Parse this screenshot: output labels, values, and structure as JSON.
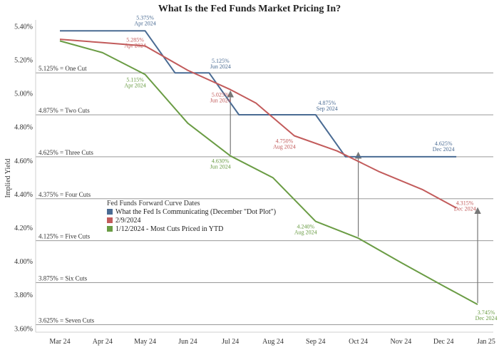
{
  "chart_data": {
    "type": "line",
    "title": "What Is the Fed Funds Market Pricing In?",
    "ylabel": "Implied Yield",
    "xlabel": "",
    "categories": [
      "Mar 24",
      "Apr 24",
      "May 24",
      "Jun 24",
      "Jul 24",
      "Aug 24",
      "Sep 24",
      "Oct 24",
      "Nov 24",
      "Dec 24",
      "Jan 25"
    ],
    "ylim": [
      3.58,
      5.44
    ],
    "yticks": [
      "3.60%",
      "3.80%",
      "4.00%",
      "4.20%",
      "4.40%",
      "4.60%",
      "4.80%",
      "5.00%",
      "5.20%",
      "5.40%"
    ],
    "legend": {
      "title": "Fed Funds Forward Curve Dates",
      "placement": "center-left"
    },
    "series": [
      {
        "name": "What the Fed Is Communicating (December \"Dot Plot\")",
        "color": "#4a6b93",
        "points": [
          [
            0,
            5.375
          ],
          [
            1,
            5.375
          ],
          [
            2,
            5.375
          ],
          [
            2.7,
            5.125
          ],
          [
            3.5,
            5.125
          ],
          [
            4.2,
            4.875
          ],
          [
            5,
            4.875
          ],
          [
            6,
            4.875
          ],
          [
            6.7,
            4.625
          ],
          [
            8,
            4.625
          ],
          [
            9,
            4.625
          ],
          [
            9.3,
            4.625
          ]
        ]
      },
      {
        "name": "2/9/2024",
        "color": "#c25b5b",
        "points": [
          [
            0,
            5.325
          ],
          [
            1,
            5.305
          ],
          [
            2,
            5.285
          ],
          [
            3,
            5.14
          ],
          [
            4,
            5.025
          ],
          [
            4.6,
            4.945
          ],
          [
            5.5,
            4.75
          ],
          [
            6.5,
            4.66
          ],
          [
            7.5,
            4.535
          ],
          [
            8.5,
            4.43
          ],
          [
            9.3,
            4.32
          ]
        ]
      },
      {
        "name": "1/12/2024 - Most Cuts Priced in YTD",
        "color": "#6a9c44",
        "points": [
          [
            0,
            5.315
          ],
          [
            1,
            5.245
          ],
          [
            2,
            5.115
          ],
          [
            3,
            4.825
          ],
          [
            4,
            4.63
          ],
          [
            5,
            4.5
          ],
          [
            6,
            4.24
          ],
          [
            7,
            4.14
          ],
          [
            8,
            3.995
          ],
          [
            9,
            3.855
          ],
          [
            9.8,
            3.745
          ]
        ]
      }
    ],
    "reference_lines": [
      {
        "value": 5.125,
        "label": "5.125% = One Cut"
      },
      {
        "value": 4.875,
        "label": "4.875% = Two Cuts"
      },
      {
        "value": 4.625,
        "label": "4.625% = Three Cuts"
      },
      {
        "value": 4.375,
        "label": "4.375% = Four Cuts"
      },
      {
        "value": 4.125,
        "label": "4.125% = Five Cuts"
      },
      {
        "value": 3.875,
        "label": "3.875% = Six Cuts"
      },
      {
        "value": 3.625,
        "label": "3.625% = Seven Cuts"
      }
    ],
    "annotations": [
      {
        "series": 0,
        "x": 2,
        "y": 5.375,
        "text": "5.375%",
        "date": "Apr 2024",
        "pos": "above"
      },
      {
        "series": 0,
        "x": 3.5,
        "y": 5.125,
        "text": "5.125%",
        "date": "Jun 2024",
        "pos": "above-right"
      },
      {
        "series": 0,
        "x": 6,
        "y": 4.875,
        "text": "4.875%",
        "date": "Sep 2024",
        "pos": "above-right"
      },
      {
        "series": 0,
        "x": 9,
        "y": 4.625,
        "text": "4.625%",
        "date": "Dec 2024",
        "pos": "above"
      },
      {
        "series": 1,
        "x": 2,
        "y": 5.285,
        "text": "5.285%",
        "date": "Apr 2024",
        "pos": "left"
      },
      {
        "series": 1,
        "x": 4,
        "y": 5.025,
        "text": "5.025%",
        "date": "Jun 2024",
        "pos": "below-left"
      },
      {
        "series": 1,
        "x": 5.5,
        "y": 4.75,
        "text": "4.750%",
        "date": "Aug 2024",
        "pos": "below-left"
      },
      {
        "series": 1,
        "x": 9.3,
        "y": 4.32,
        "text": "4.315%",
        "date": "Dec 2024",
        "pos": "right"
      },
      {
        "series": 2,
        "x": 2,
        "y": 5.115,
        "text": "5.115%",
        "date": "Apr 2024",
        "pos": "below-left"
      },
      {
        "series": 2,
        "x": 4,
        "y": 4.63,
        "text": "4.630%",
        "date": "Jun 2024",
        "pos": "below-left"
      },
      {
        "series": 2,
        "x": 6,
        "y": 4.24,
        "text": "4.240%",
        "date": "Aug 2024",
        "pos": "below-left"
      },
      {
        "series": 2,
        "x": 9.8,
        "y": 3.745,
        "text": "3.745%",
        "date": "Dec 2024",
        "pos": "below-right"
      }
    ],
    "arrows": [
      {
        "x": 4,
        "from": 4.63,
        "to": 5.025
      },
      {
        "x": 7,
        "from": 4.14,
        "to": 4.66
      },
      {
        "x": 9.8,
        "from": 3.745,
        "to": 4.33
      }
    ],
    "grid": false
  }
}
